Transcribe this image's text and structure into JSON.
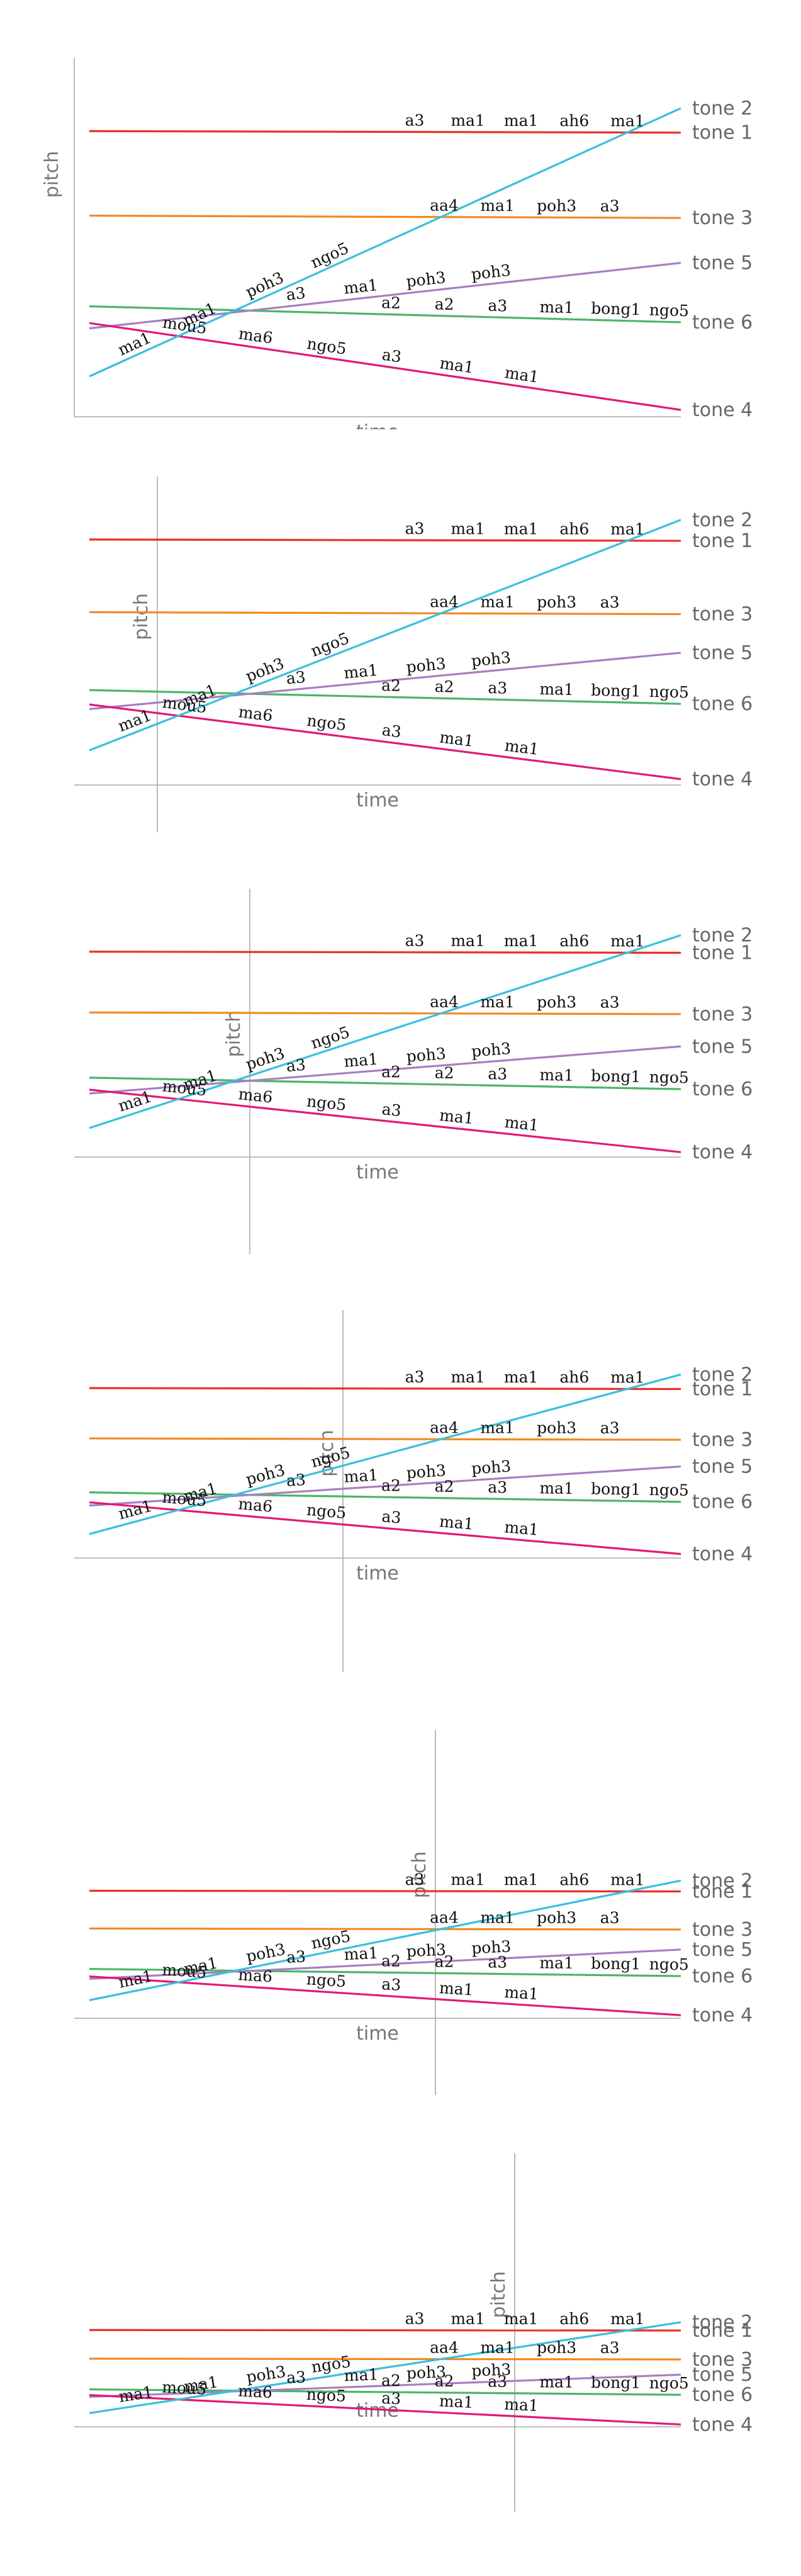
{
  "axis": {
    "x_label": "time",
    "y_label": "pitch"
  },
  "colors": {
    "tone 1": "#e8302b",
    "tone 2": "#3bbfdc",
    "tone 3": "#f08a24",
    "tone 4": "#e01a74",
    "tone 5": "#a97dc4",
    "tone 6": "#4cb568"
  },
  "tones": [
    {
      "label": "tone 1",
      "start": 3.75,
      "end": 3.73,
      "words": [
        "a3",
        "ma1",
        "ma1",
        "ah6",
        "ma1"
      ]
    },
    {
      "label": "tone 2",
      "start": 0.53,
      "end": 4.05,
      "words": [
        "ma1",
        "ma1",
        "poh3",
        "ngo5"
      ]
    },
    {
      "label": "tone 3",
      "start": 2.64,
      "end": 2.61,
      "words": [
        "aa4",
        "ma1",
        "poh3",
        "a3"
      ]
    },
    {
      "label": "tone 4",
      "start": 1.23,
      "end": 0.09,
      "words": [
        "mou5",
        "ma6",
        "ngo5",
        "a3",
        "ma1",
        "ma1"
      ]
    },
    {
      "label": "tone 5",
      "start": 1.16,
      "end": 2.02,
      "words": [
        "a3",
        "ma1",
        "poh3",
        "poh3"
      ]
    },
    {
      "label": "tone 6",
      "start": 1.45,
      "end": 1.24,
      "words": [
        "a2",
        "a2",
        "a3",
        "ma1",
        "bong1",
        "ngo5"
      ]
    }
  ],
  "chart_data": {
    "type": "line",
    "panels": 6,
    "xlabel": "time",
    "ylabel": "pitch",
    "x": [
      0,
      1
    ],
    "series": [
      {
        "name": "tone 1",
        "values": [
          3.75,
          3.73
        ]
      },
      {
        "name": "tone 2",
        "values": [
          0.53,
          4.05
        ]
      },
      {
        "name": "tone 3",
        "values": [
          2.64,
          2.61
        ]
      },
      {
        "name": "tone 4",
        "values": [
          1.23,
          0.09
        ]
      },
      {
        "name": "tone 5",
        "values": [
          1.16,
          2.02
        ]
      },
      {
        "name": "tone 6",
        "values": [
          1.45,
          1.24
        ]
      }
    ]
  }
}
